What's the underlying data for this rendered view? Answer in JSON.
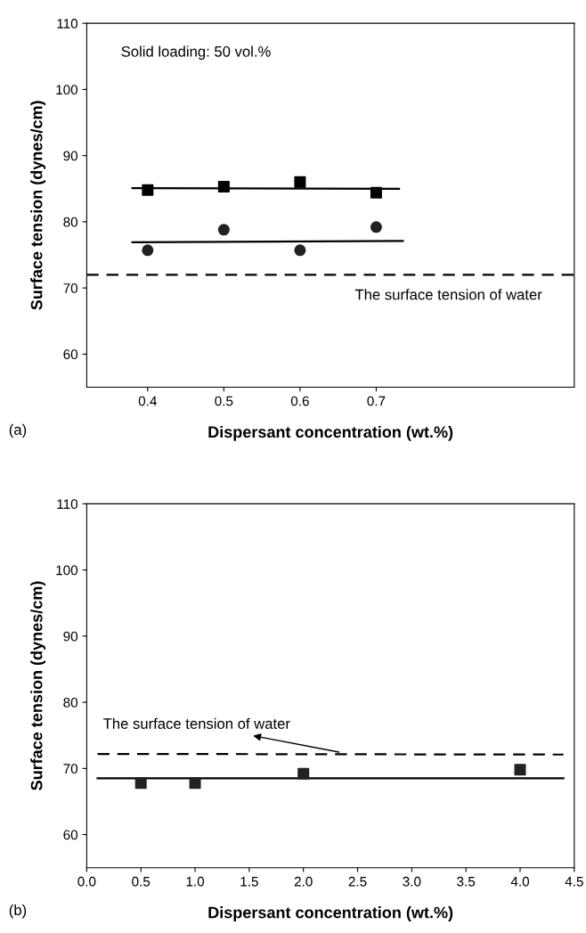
{
  "chart_data": [
    {
      "type": "scatter",
      "xlabel": "Dispersant concentration (wt.%)",
      "ylabel": "Surface tension (dynes/cm)",
      "xlim": [
        0.32,
        0.96
      ],
      "xticks": [
        0.4,
        0.5,
        0.6,
        0.7
      ],
      "ylim": [
        55,
        110
      ],
      "yticks": [
        60,
        70,
        80,
        90,
        100,
        110
      ],
      "grid": false,
      "series": [
        {
          "color": "#000000",
          "marker": "square",
          "x": [
            0.4,
            0.5,
            0.6,
            0.7
          ],
          "values": [
            84.8,
            85.3,
            86.0,
            84.4
          ]
        },
        {
          "color": "#222222",
          "marker": "circle",
          "x": [
            0.4,
            0.5,
            0.6,
            0.7
          ],
          "values": [
            75.7,
            78.8,
            75.7,
            79.2
          ]
        },
        {
          "type": "line",
          "color": "#000000",
          "line_style": "solid",
          "x": [
            0.38,
            0.73
          ],
          "values": [
            85.1,
            85.0
          ]
        },
        {
          "type": "line",
          "color": "#000000",
          "line_style": "solid",
          "x": [
            0.38,
            0.735
          ],
          "values": [
            76.9,
            77.1
          ]
        },
        {
          "type": "line",
          "color": "#000000",
          "line_style": "dashed",
          "x": [
            0.32,
            0.96
          ],
          "values": [
            72.0,
            72.0
          ]
        }
      ],
      "annotations": [
        "Solid loading: 50 vol.%",
        "The surface tension of water",
        "(a)"
      ]
    },
    {
      "type": "scatter",
      "xlabel": "Dispersant concentration (wt.%)",
      "ylabel": "Surface tension (dynes/cm)",
      "xlim": [
        0.0,
        4.5
      ],
      "xticks": [
        {
          "value": 0,
          "label": "0.0"
        },
        0.5,
        {
          "value": 1,
          "label": "1.0"
        },
        1.5,
        {
          "value": 2,
          "label": "2.0"
        },
        2.5,
        {
          "value": 3,
          "label": "3.0"
        },
        3.5,
        {
          "value": 4,
          "label": "4.0"
        },
        4.5
      ],
      "ylim": [
        55,
        110
      ],
      "yticks": [
        60,
        70,
        80,
        90,
        100,
        110
      ],
      "grid": false,
      "series": [
        {
          "color": "#222222",
          "marker": "square",
          "x": [
            0.5,
            1.0,
            2.0,
            4.0
          ],
          "values": [
            67.8,
            67.8,
            69.2,
            69.8
          ]
        },
        {
          "type": "line",
          "color": "#000000",
          "line_style": "solid",
          "x": [
            0.1,
            4.4
          ],
          "values": [
            68.5,
            68.5
          ]
        },
        {
          "type": "line",
          "color": "#000000",
          "line_style": "dashed",
          "x": [
            0.1,
            4.4
          ],
          "values": [
            72.2,
            72.1
          ]
        }
      ],
      "annotations": [
        {
          "text": "The surface tension of water",
          "x": 2.35,
          "y": 72.4
        },
        "(b)"
      ]
    }
  ]
}
